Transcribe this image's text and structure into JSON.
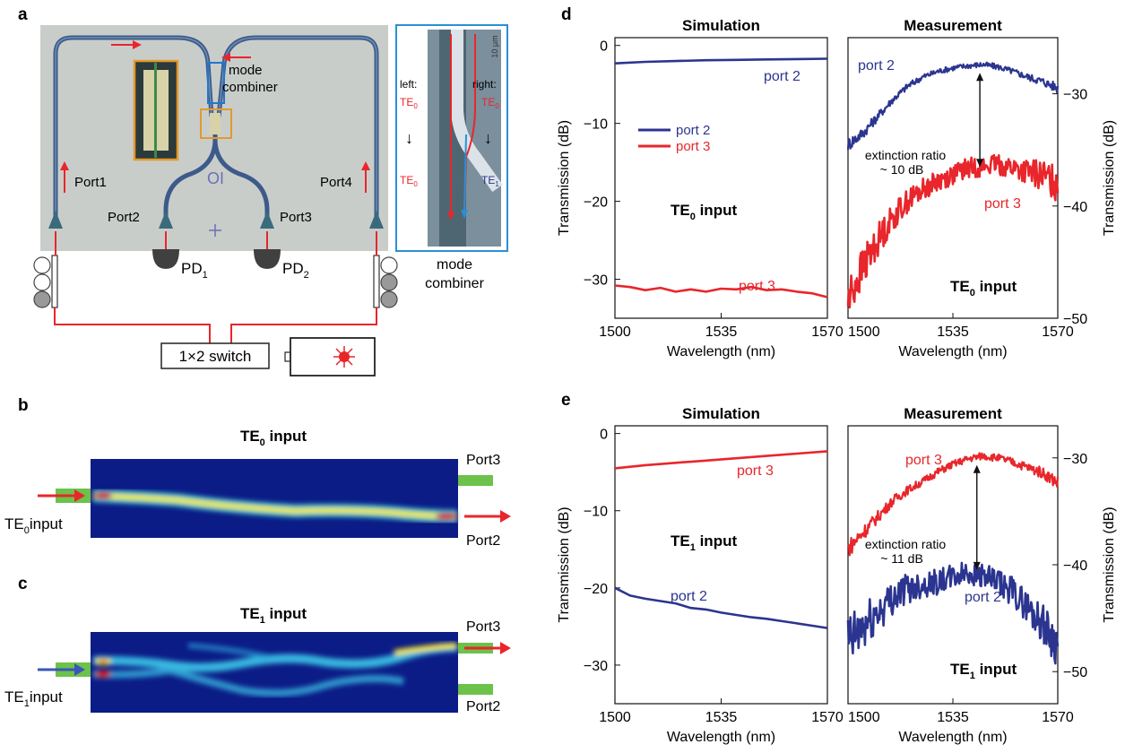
{
  "panels": {
    "a": {
      "label": "a",
      "ports": [
        "Port1",
        "Port2",
        "Port3",
        "Port4"
      ],
      "pd1": "PD",
      "pd1_sub": "1",
      "pd2": "PD",
      "pd2_sub": "2",
      "chip_mark": "OI",
      "mode_combiner": "mode combiner",
      "mode_combiner_line1": "mode",
      "mode_combiner_line2": "combiner",
      "switch": "1×2 switch",
      "inset": {
        "scale": "10 μm",
        "left_title": "left:",
        "right_title": "right:",
        "left_in": "TE",
        "left_in_sub": "0",
        "left_out": "TE",
        "left_out_sub": "0",
        "right_in": "TE",
        "right_in_sub": "0",
        "right_out": "TE",
        "right_out_sub": "1",
        "arrow": "↓"
      }
    },
    "b": {
      "label": "b",
      "title": "TE",
      "title_sub": "0",
      "title_rest": " input",
      "input": "TE",
      "input_sub": "0",
      "input_rest": "input",
      "port_top": "Port3",
      "port_bottom": "Port2"
    },
    "c": {
      "label": "c",
      "title": "TE",
      "title_sub": "1",
      "title_rest": " input",
      "input": "TE",
      "input_sub": "1",
      "input_rest": "input",
      "port_top": "Port3",
      "port_bottom": "Port2"
    },
    "d": {
      "label": "d"
    },
    "e": {
      "label": "e"
    }
  },
  "colors": {
    "blue": "#2b3590",
    "red": "#e8262b",
    "green": "#6cc24a",
    "chip": "#c9cdca"
  },
  "chart_data": [
    {
      "id": "d-sim",
      "type": "line",
      "panel": "d",
      "title": "Simulation",
      "xlabel": "Wavelength (nm)",
      "ylabel": "Transmission (dB)",
      "xlim": [
        1500,
        1570
      ],
      "ylim": [
        -35,
        1
      ],
      "xticks": [
        1500,
        1535,
        1570
      ],
      "yticks": [
        0,
        -10,
        -20,
        -30
      ],
      "annotation": {
        "text": "TE",
        "sub": "0",
        "rest": " input"
      },
      "legend": [
        {
          "name": "port 2",
          "color": "#2b3590"
        },
        {
          "name": "port 3",
          "color": "#e8262b"
        }
      ],
      "series": [
        {
          "name": "port 2",
          "color": "#2b3590",
          "x": [
            1500,
            1510,
            1520,
            1530,
            1540,
            1550,
            1560,
            1570
          ],
          "y": [
            -2.3,
            -2.1,
            -2.0,
            -1.9,
            -1.85,
            -1.8,
            -1.75,
            -1.7
          ]
        },
        {
          "name": "port 3",
          "color": "#e8262b",
          "x": [
            1500,
            1505,
            1510,
            1515,
            1520,
            1525,
            1530,
            1535,
            1540,
            1545,
            1550,
            1555,
            1560,
            1565,
            1570
          ],
          "y": [
            -30.8,
            -31.0,
            -31.4,
            -31.1,
            -31.6,
            -31.3,
            -31.6,
            -31.2,
            -31.3,
            -31.0,
            -31.4,
            -31.3,
            -31.6,
            -31.8,
            -32.3
          ]
        }
      ],
      "series_labels": [
        "port 2",
        "port 3"
      ]
    },
    {
      "id": "d-meas",
      "type": "line",
      "panel": "d",
      "title": "Measurement",
      "xlabel": "Wavelength (nm)",
      "ylabel": "Transmission (dB)",
      "xlim": [
        1500,
        1570
      ],
      "ylim": [
        -50,
        -25
      ],
      "xticks": [
        1500,
        1535,
        1570
      ],
      "yticks": [
        -30,
        -40,
        -50
      ],
      "annotation": {
        "text": "TE",
        "sub": "0",
        "rest": " input"
      },
      "extinction": {
        "line1": "extinction ratio",
        "line2": "~ 10 dB",
        "x": 1544,
        "y_top": -27.5,
        "y_bottom": -37
      },
      "series": [
        {
          "name": "port 2",
          "color": "#2b3590",
          "x": [
            1500,
            1505,
            1510,
            1515,
            1520,
            1525,
            1530,
            1535,
            1540,
            1545,
            1550,
            1555,
            1560,
            1565,
            1570
          ],
          "y": [
            -34.5,
            -33.5,
            -32.0,
            -30.5,
            -29.3,
            -28.5,
            -28.0,
            -27.7,
            -27.5,
            -27.4,
            -27.6,
            -28.0,
            -28.5,
            -28.9,
            -29.5
          ]
        },
        {
          "name": "port 3",
          "color": "#e8262b",
          "x": [
            1500,
            1503,
            1506,
            1510,
            1515,
            1520,
            1525,
            1530,
            1535,
            1540,
            1545,
            1550,
            1555,
            1560,
            1565,
            1570
          ],
          "y": [
            -48.5,
            -46.5,
            -45.0,
            -43.0,
            -41.0,
            -39.5,
            -38.5,
            -37.8,
            -37.2,
            -36.6,
            -36.5,
            -36.3,
            -36.6,
            -37.0,
            -37.3,
            -38.0
          ]
        }
      ],
      "series_labels": [
        "port 2",
        "port 3"
      ]
    },
    {
      "id": "e-sim",
      "type": "line",
      "panel": "e",
      "title": "Simulation",
      "xlabel": "Wavelength (nm)",
      "ylabel": "Transmission (dB)",
      "xlim": [
        1500,
        1570
      ],
      "ylim": [
        -35,
        1
      ],
      "xticks": [
        1500,
        1535,
        1570
      ],
      "yticks": [
        0,
        -10,
        -20,
        -30
      ],
      "annotation": {
        "text": "TE",
        "sub": "1",
        "rest": " input"
      },
      "series": [
        {
          "name": "port 3",
          "color": "#e8262b",
          "x": [
            1500,
            1510,
            1520,
            1530,
            1540,
            1550,
            1560,
            1570
          ],
          "y": [
            -4.5,
            -4.1,
            -3.8,
            -3.5,
            -3.2,
            -2.9,
            -2.6,
            -2.3
          ]
        },
        {
          "name": "port 2",
          "color": "#2b3590",
          "x": [
            1500,
            1505,
            1510,
            1515,
            1520,
            1525,
            1530,
            1535,
            1540,
            1545,
            1550,
            1555,
            1560,
            1565,
            1570
          ],
          "y": [
            -20.0,
            -21.0,
            -21.4,
            -21.7,
            -22.0,
            -22.6,
            -22.8,
            -23.2,
            -23.5,
            -23.8,
            -24.0,
            -24.3,
            -24.6,
            -24.9,
            -25.2
          ]
        }
      ],
      "series_labels": [
        "port 3",
        "port 2"
      ]
    },
    {
      "id": "e-meas",
      "type": "line",
      "panel": "e",
      "title": "Measurement",
      "xlabel": "Wavelength (nm)",
      "ylabel": "Transmission (dB)",
      "xlim": [
        1500,
        1570
      ],
      "ylim": [
        -53,
        -27
      ],
      "xticks": [
        1500,
        1535,
        1570
      ],
      "yticks": [
        -30,
        -40,
        -50
      ],
      "annotation": {
        "text": "TE",
        "sub": "1",
        "rest": " input"
      },
      "extinction": {
        "line1": "extinction ratio",
        "line2": "~ 11 dB",
        "x": 1543,
        "y_top": -30,
        "y_bottom": -41
      },
      "series": [
        {
          "name": "port 3",
          "color": "#e8262b",
          "x": [
            1500,
            1505,
            1510,
            1515,
            1520,
            1525,
            1530,
            1535,
            1540,
            1545,
            1550,
            1555,
            1560,
            1565,
            1570
          ],
          "y": [
            -38.5,
            -37.0,
            -35.5,
            -34.0,
            -33.0,
            -32.2,
            -31.3,
            -30.6,
            -30.1,
            -29.8,
            -30.0,
            -30.4,
            -30.9,
            -31.4,
            -32.3
          ]
        },
        {
          "name": "port 2",
          "color": "#2b3590",
          "x": [
            1500,
            1505,
            1510,
            1515,
            1520,
            1525,
            1530,
            1535,
            1540,
            1545,
            1550,
            1555,
            1560,
            1565,
            1570
          ],
          "y": [
            -47.5,
            -46.0,
            -44.5,
            -43.0,
            -42.2,
            -41.8,
            -41.6,
            -41.2,
            -40.7,
            -41.0,
            -41.8,
            -42.5,
            -44.0,
            -45.5,
            -47.5
          ]
        }
      ],
      "series_labels": [
        "port 3",
        "port 2"
      ]
    }
  ]
}
